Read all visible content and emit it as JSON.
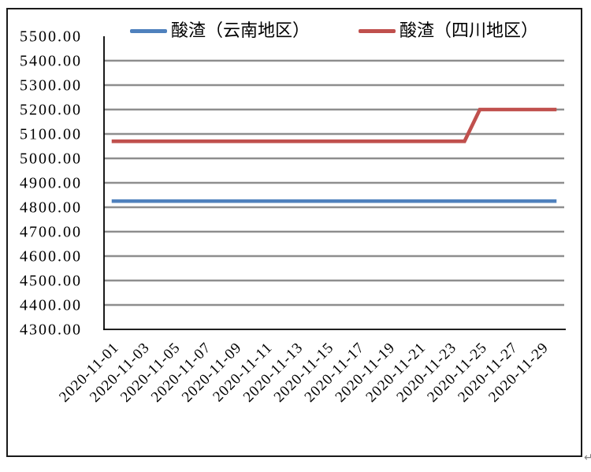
{
  "page": {
    "return_mark": "↵"
  },
  "chart_data": {
    "type": "line",
    "title": "",
    "xlabel": "",
    "ylabel": "",
    "legend_position": "top",
    "grid": true,
    "ylim": [
      4300,
      5500
    ],
    "ytick_step": 100,
    "yticks": [
      "5500.00",
      "5400.00",
      "5300.00",
      "5200.00",
      "5100.00",
      "5000.00",
      "4900.00",
      "4800.00",
      "4700.00",
      "4600.00",
      "4500.00",
      "4400.00",
      "4300.00"
    ],
    "xticks": [
      "2020-11-01",
      "2020-11-03",
      "2020-11-05",
      "2020-11-07",
      "2020-11-09",
      "2020-11-11",
      "2020-11-13",
      "2020-11-15",
      "2020-11-17",
      "2020-11-19",
      "2020-11-21",
      "2020-11-23",
      "2020-11-25",
      "2020-11-27",
      "2020-11-29"
    ],
    "x": [
      "2020-11-01",
      "2020-11-02",
      "2020-11-03",
      "2020-11-04",
      "2020-11-05",
      "2020-11-06",
      "2020-11-07",
      "2020-11-08",
      "2020-11-09",
      "2020-11-10",
      "2020-11-11",
      "2020-11-12",
      "2020-11-13",
      "2020-11-14",
      "2020-11-15",
      "2020-11-16",
      "2020-11-17",
      "2020-11-18",
      "2020-11-19",
      "2020-11-20",
      "2020-11-21",
      "2020-11-22",
      "2020-11-23",
      "2020-11-24",
      "2020-11-25",
      "2020-11-26",
      "2020-11-27",
      "2020-11-28",
      "2020-11-29",
      "2020-11-30"
    ],
    "series": [
      {
        "name": "酸渣（云南地区）",
        "color": "#4F81BD",
        "values": [
          4825,
          4825,
          4825,
          4825,
          4825,
          4825,
          4825,
          4825,
          4825,
          4825,
          4825,
          4825,
          4825,
          4825,
          4825,
          4825,
          4825,
          4825,
          4825,
          4825,
          4825,
          4825,
          4825,
          4825,
          4825,
          4825,
          4825,
          4825,
          4825,
          4825
        ]
      },
      {
        "name": "酸渣（四川地区）",
        "color": "#C0504D",
        "values": [
          5070,
          5070,
          5070,
          5070,
          5070,
          5070,
          5070,
          5070,
          5070,
          5070,
          5070,
          5070,
          5070,
          5070,
          5070,
          5070,
          5070,
          5070,
          5070,
          5070,
          5070,
          5070,
          5070,
          5070,
          5200,
          5200,
          5200,
          5200,
          5200,
          5200
        ]
      }
    ],
    "colors": {
      "gridline": "#8e8e8e",
      "axis": "#000000",
      "tick_text": "#000000"
    }
  }
}
